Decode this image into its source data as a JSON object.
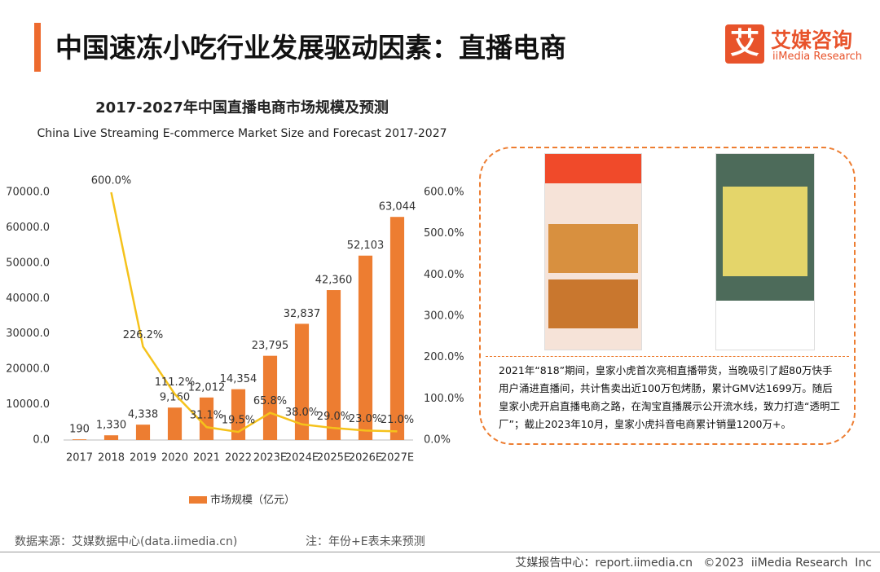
{
  "header": {
    "title": "中国速冻小吃行业发展驱动因素：直播电商"
  },
  "logo": {
    "mark": "艾",
    "name": "艾媒咨询",
    "sub": "iiMedia Research"
  },
  "chart_data": {
    "type": "bar",
    "title": "2017-2027年中国直播电商市场规模及预测",
    "subtitle": "China Live Streaming E-commerce Market Size and Forecast 2017-2027",
    "categories": [
      "2017",
      "2018",
      "2019",
      "2020",
      "2021",
      "2022",
      "2023E",
      "2024E",
      "2025E",
      "2026E",
      "2027E"
    ],
    "series": [
      {
        "name": "市场规模（亿元）",
        "type": "bar",
        "color": "#ed7d31",
        "values": [
          190,
          1330,
          4338,
          9160,
          12012,
          14354,
          23795,
          32837,
          42360,
          52103,
          63044
        ],
        "value_labels": [
          "190",
          "1,330",
          "4,338",
          "9,160",
          "12,012",
          "14,354",
          "23,795",
          "32,837",
          "42,360",
          "52,103",
          "63,044"
        ]
      },
      {
        "type": "line",
        "axis": "y2",
        "color": "#f5c21b",
        "values": [
          null,
          600,
          226.2,
          111.2,
          31.1,
          19.5,
          65.8,
          38.0,
          29.0,
          23.0,
          21.0
        ],
        "value_labels": [
          null,
          "600.0%",
          "226.2%",
          "111.2%",
          "31.1%",
          "19.5%",
          "65.8%",
          "38.0%",
          "29.0%",
          "23.0%",
          "21.0%"
        ]
      }
    ],
    "ylim": [
      0,
      70000
    ],
    "yticks": [
      {
        "value": 0,
        "label": "0.0"
      },
      {
        "value": 10000,
        "label": "10000.0"
      },
      {
        "value": 20000,
        "label": "20000.0"
      },
      {
        "value": 30000,
        "label": "30000.0"
      },
      {
        "value": 40000,
        "label": "40000.0"
      },
      {
        "value": 50000,
        "label": "50000.0"
      },
      {
        "value": 60000,
        "label": "60000.0"
      },
      {
        "value": 70000,
        "label": "70000.0"
      }
    ],
    "y2lim": [
      0,
      600
    ],
    "y2ticks": [
      {
        "value": 0,
        "label": "0.0%"
      },
      {
        "value": 100,
        "label": "100.0%"
      },
      {
        "value": 200,
        "label": "200.0%"
      },
      {
        "value": 300,
        "label": "300.0%"
      },
      {
        "value": 400,
        "label": "400.0%"
      },
      {
        "value": 500,
        "label": "500.0%"
      },
      {
        "value": 600,
        "label": "600.0%"
      }
    ],
    "grid": false,
    "legend": "bottom"
  },
  "panel": {
    "text": "2021年“818”期间，皇家小虎首次亮相直播带货，当晚吸引了超80万快手用户涌进直播间，共计售卖出近100万包烤肠，累计GMV达1699万。随后皇家小虎开启直播电商之路，在淘宝直播展示公开流水线，致力打造“透明工厂”；截止2023年10月，皇家小虎抖音电商累计销量1200万+。"
  },
  "source": "数据来源：艾媒数据中心(data.iimedia.cn)",
  "note": "注：年份+E表未来预测",
  "footer": "艾媒报告中心：report.iimedia.cn   ©2023  iiMedia Research  Inc"
}
